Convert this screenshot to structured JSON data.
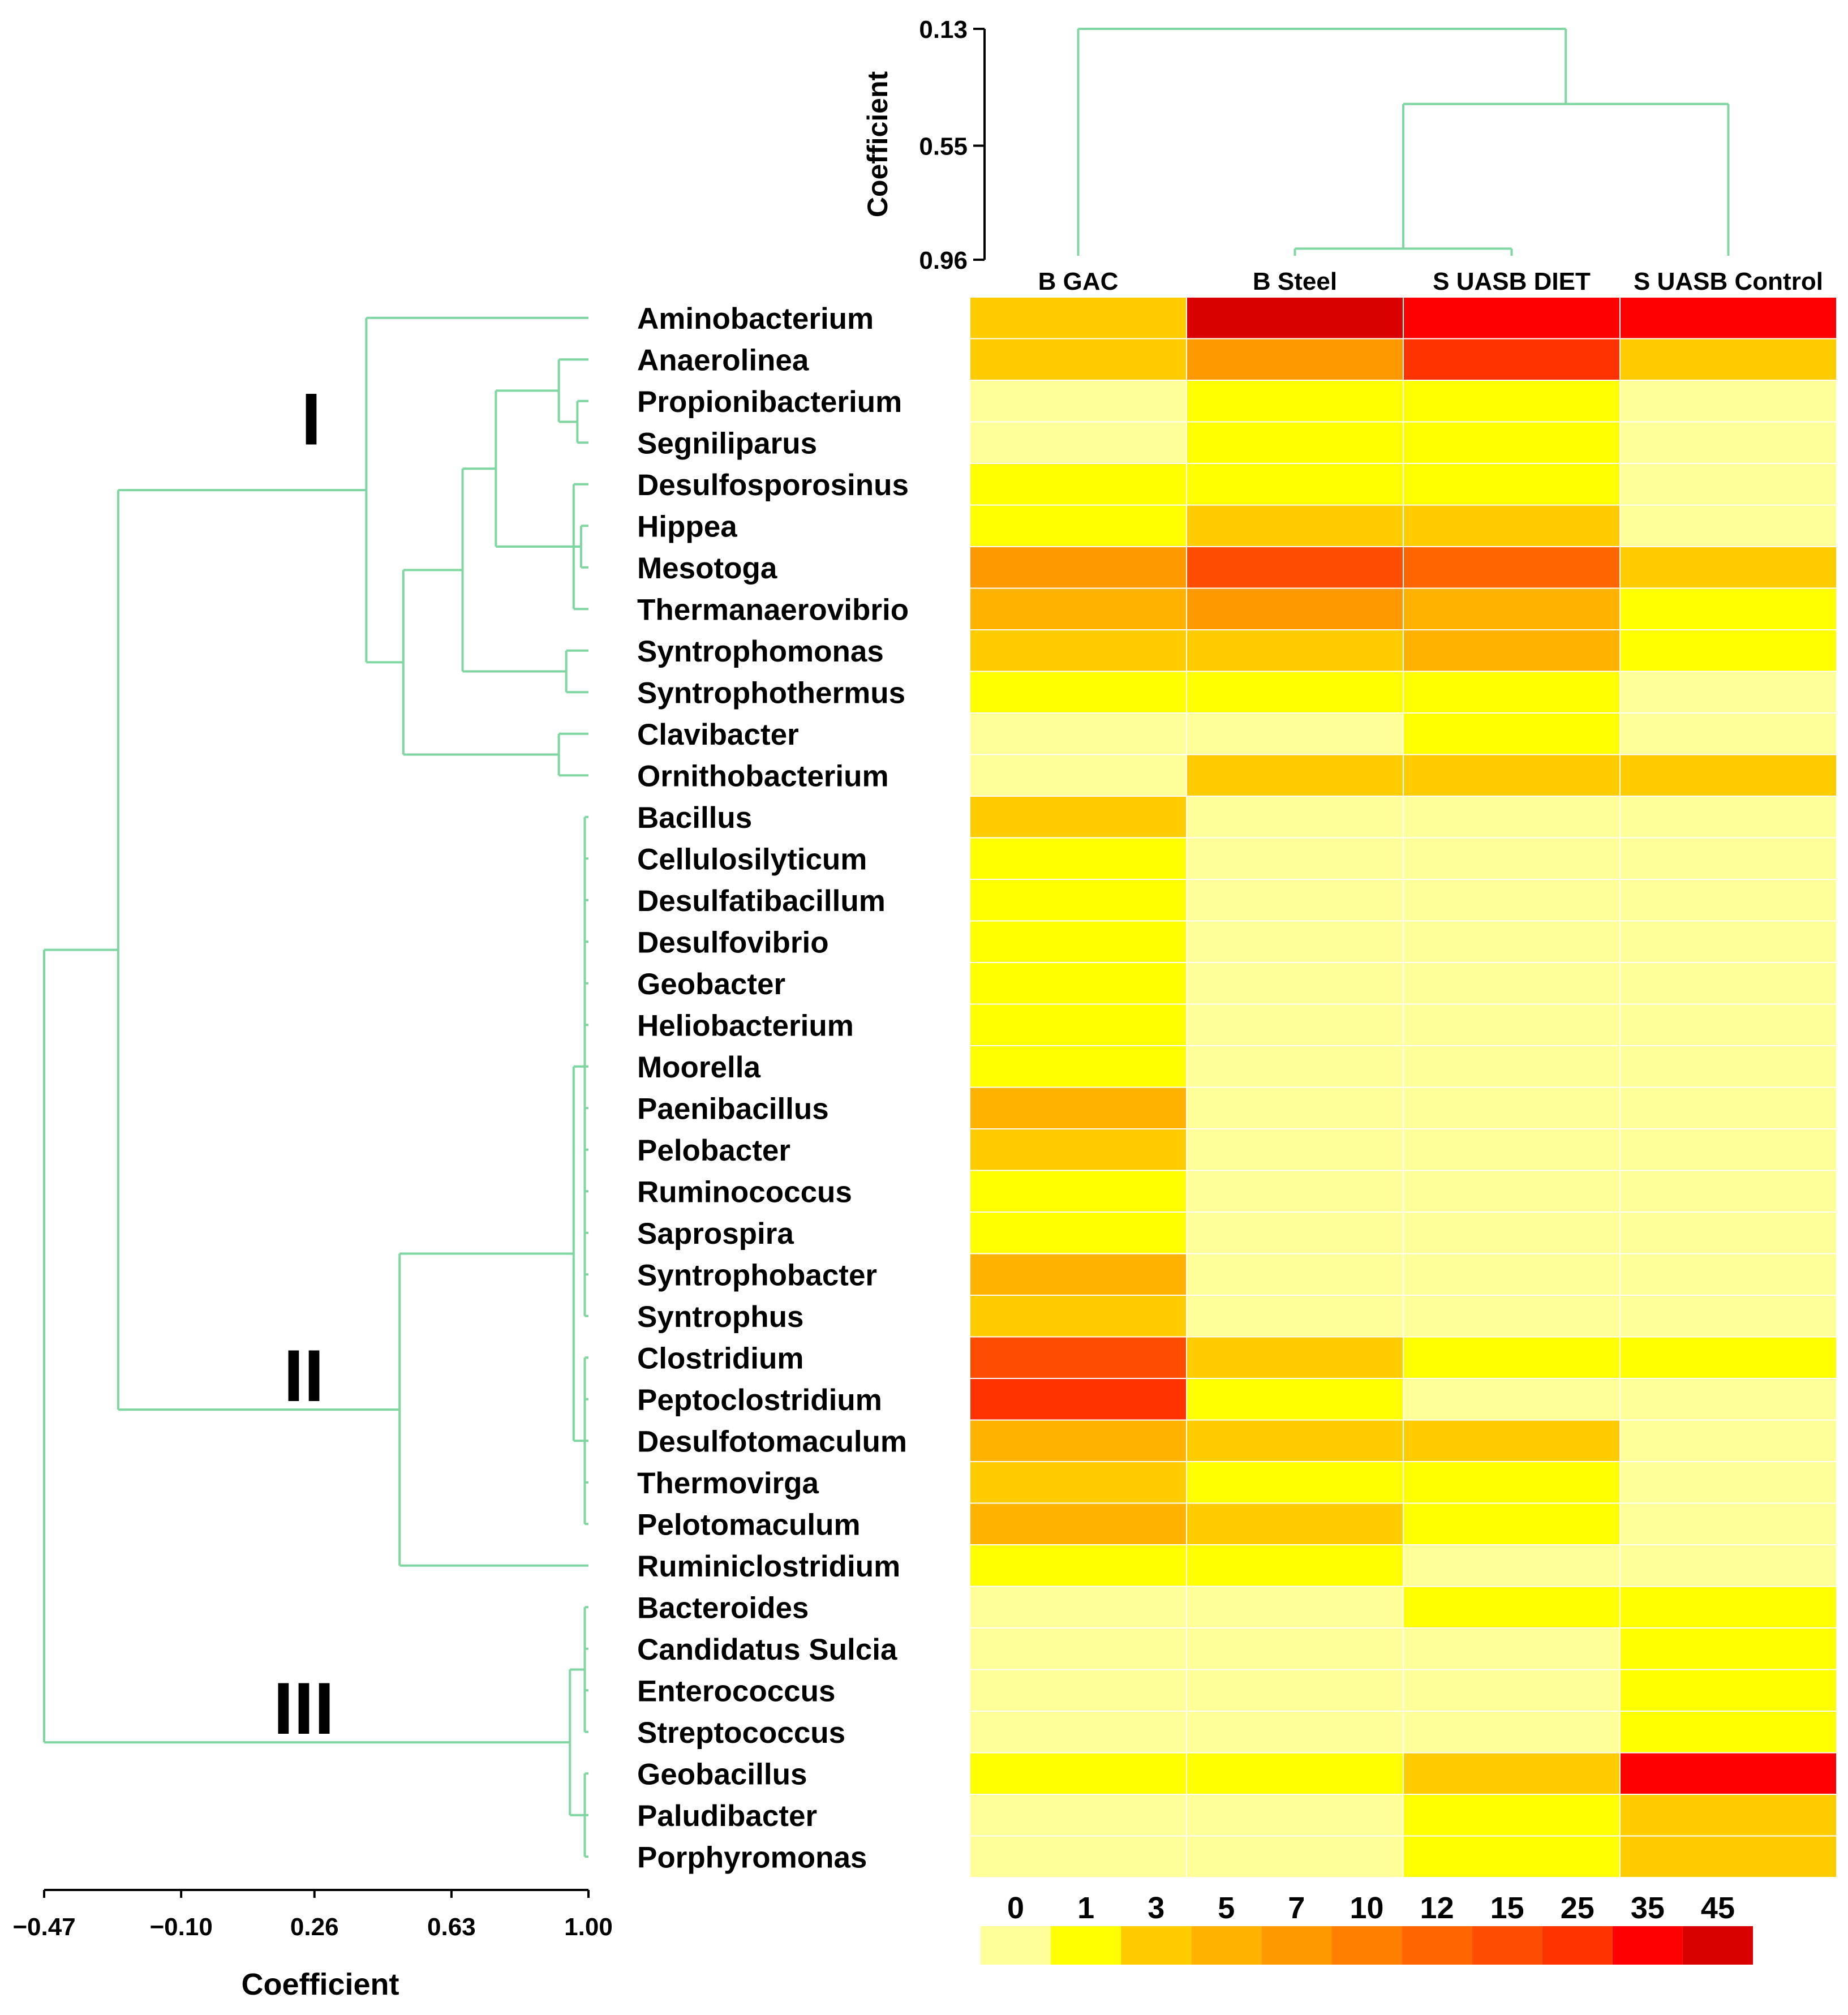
{
  "chart_data": {
    "type": "heatmap",
    "columns": [
      "B GAC",
      "B Steel",
      "S UASB DIET",
      "S UASB Control"
    ],
    "rows": [
      "Aminobacterium",
      "Anaerolinea",
      "Propionibacterium",
      "Segniliparus",
      "Desulfosporosinus",
      "Hippea",
      "Mesotoga",
      "Thermanaerovibrio",
      "Syntrophomonas",
      "Syntrophothermus",
      "Clavibacter",
      "Ornithobacterium",
      "Bacillus",
      "Cellulosilyticum",
      "Desulfatibacillum",
      "Desulfovibrio",
      "Geobacter",
      "Heliobacterium",
      "Moorella",
      "Paenibacillus",
      "Pelobacter",
      "Ruminococcus",
      "Saprospira",
      "Syntrophobacter",
      "Syntrophus",
      "Clostridium",
      "Peptoclostridium",
      "Desulfotomaculum",
      "Thermovirga",
      "Pelotomaculum",
      "Ruminiclostridium",
      "Bacteroides",
      "Candidatus Sulcia",
      "Enterococcus",
      "Streptococcus",
      "Geobacillus",
      "Paludibacter",
      "Porphyromonas"
    ],
    "values": [
      [
        3,
        45,
        35,
        35
      ],
      [
        3,
        7,
        25,
        3
      ],
      [
        0,
        1,
        1,
        0
      ],
      [
        0,
        1,
        1,
        0
      ],
      [
        1,
        1,
        1,
        0
      ],
      [
        1,
        3,
        3,
        0
      ],
      [
        7,
        15,
        12,
        3
      ],
      [
        5,
        7,
        5,
        1
      ],
      [
        3,
        3,
        5,
        1
      ],
      [
        1,
        1,
        1,
        0
      ],
      [
        0,
        0,
        1,
        0
      ],
      [
        0,
        3,
        3,
        3
      ],
      [
        3,
        0,
        0,
        0
      ],
      [
        1,
        0,
        0,
        0
      ],
      [
        1,
        0,
        0,
        0
      ],
      [
        1,
        0,
        0,
        0
      ],
      [
        1,
        0,
        0,
        0
      ],
      [
        1,
        0,
        0,
        0
      ],
      [
        1,
        0,
        0,
        0
      ],
      [
        5,
        0,
        0,
        0
      ],
      [
        3,
        0,
        0,
        0
      ],
      [
        1,
        0,
        0,
        0
      ],
      [
        1,
        0,
        0,
        0
      ],
      [
        5,
        0,
        0,
        0
      ],
      [
        3,
        0,
        0,
        0
      ],
      [
        15,
        3,
        1,
        1
      ],
      [
        25,
        1,
        0,
        0
      ],
      [
        5,
        3,
        3,
        0
      ],
      [
        3,
        1,
        1,
        0
      ],
      [
        5,
        3,
        1,
        0
      ],
      [
        1,
        1,
        0,
        0
      ],
      [
        0,
        0,
        1,
        1
      ],
      [
        0,
        0,
        0,
        1
      ],
      [
        0,
        0,
        0,
        1
      ],
      [
        0,
        0,
        0,
        1
      ],
      [
        1,
        1,
        3,
        35
      ],
      [
        0,
        0,
        1,
        3
      ],
      [
        0,
        0,
        1,
        3
      ]
    ],
    "color_scale": {
      "labels": [
        "0",
        "1",
        "3",
        "5",
        "7",
        "10",
        "12",
        "15",
        "25",
        "35",
        "45"
      ],
      "values": [
        0,
        1,
        3,
        5,
        7,
        10,
        12,
        15,
        25,
        35,
        45
      ],
      "colors": [
        "#ffff99",
        "#ffff00",
        "#ffcc00",
        "#ffb300",
        "#ff9900",
        "#ff7f00",
        "#ff6600",
        "#ff4d00",
        "#ff3300",
        "#ff0000",
        "#d90000"
      ]
    },
    "col_dendrogram": {
      "ylabel": "Coefficient",
      "ticks": [
        "0.13",
        "0.55",
        "0.96"
      ],
      "tick_values": [
        0.13,
        0.55,
        0.96
      ]
    },
    "row_dendrogram": {
      "xlabel": "Coefficient",
      "ticks": [
        "−0.47",
        "−0.10",
        "0.26",
        "0.63",
        "1.00"
      ],
      "tick_values": [
        -0.47,
        -0.1,
        0.26,
        0.63,
        1.0
      ]
    },
    "clusters": [
      "I",
      "II",
      "III"
    ]
  }
}
